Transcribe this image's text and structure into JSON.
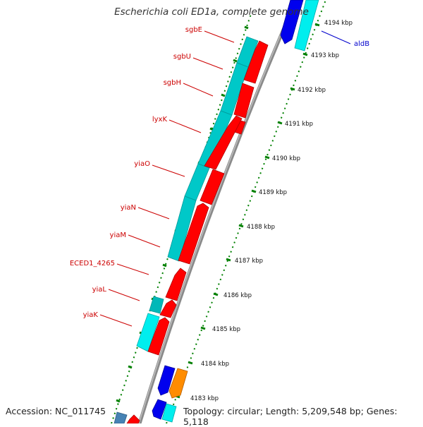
{
  "title": "Escherichia coli ED1a, complete genome",
  "footer": {
    "accession": "Accession: NC_011745",
    "summary": "Topology: circular; Length: 5,209,548 bp; Genes: 5,118"
  },
  "colors": {
    "backbone": "#888888",
    "forward_cds": "#ff0000",
    "reverse_cds": "#00cccc",
    "other_cds": "#0000ee",
    "other_cds_alt": "#00eeee",
    "orange_cds": "#ff8c00",
    "steelblue_cds": "#4682b4",
    "tick": "#008000",
    "label_red": "#cc0000",
    "label_blue": "#0000cc"
  },
  "gene_labels": [
    {
      "name": "sgbE",
      "color": "red"
    },
    {
      "name": "sgbU",
      "color": "red"
    },
    {
      "name": "sgbH",
      "color": "red"
    },
    {
      "name": "lyxK",
      "color": "red"
    },
    {
      "name": "yiaO",
      "color": "red"
    },
    {
      "name": "yiaN",
      "color": "red"
    },
    {
      "name": "yiaM",
      "color": "red"
    },
    {
      "name": "ECED1_4265",
      "color": "red"
    },
    {
      "name": "yiaL",
      "color": "red"
    },
    {
      "name": "yiaK",
      "color": "red"
    },
    {
      "name": "aldB",
      "color": "blue"
    }
  ],
  "scale_labels": [
    "4194 kbp",
    "4193 kbp",
    "4192 kbp",
    "4191 kbp",
    "4190 kbp",
    "4189 kbp",
    "4188 kbp",
    "4187 kbp",
    "4186 kbp",
    "4185 kbp",
    "4184 kbp",
    "4183 kbp"
  ]
}
